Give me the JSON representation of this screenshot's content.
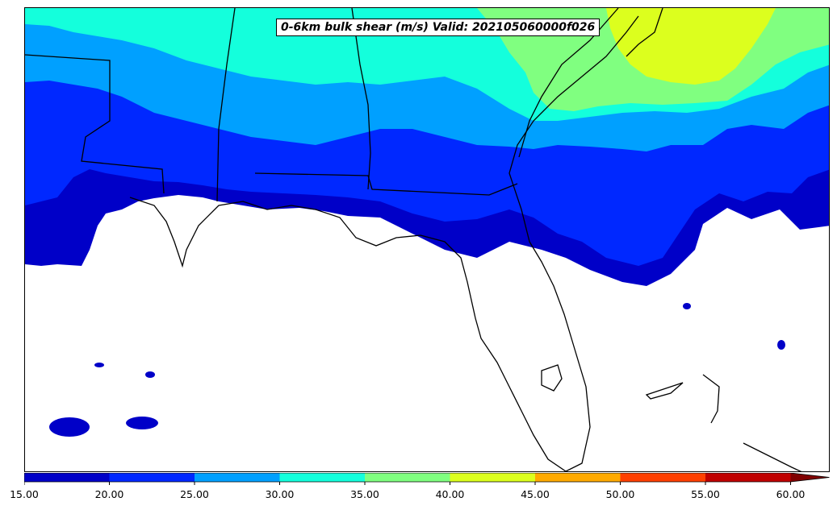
{
  "title": "0-6km bulk shear (m/s) Valid: 202105060000f026",
  "colorbar": {
    "ticks": [
      "15.00",
      "20.00",
      "25.00",
      "30.00",
      "35.00",
      "40.00",
      "45.00",
      "50.00",
      "55.00",
      "60.00"
    ],
    "colors": [
      "#0000c8",
      "#0028ff",
      "#00a0ff",
      "#14ffdc",
      "#80ff80",
      "#dcff1e",
      "#ffaa00",
      "#ff4000",
      "#c00000"
    ],
    "extend_color": "#800000",
    "extend": "max"
  },
  "bands": [
    {
      "name": "15-20",
      "color": "#0000c8"
    },
    {
      "name": "20-25",
      "color": "#0028ff"
    },
    {
      "name": "25-30",
      "color": "#00a0ff"
    },
    {
      "name": "30-35",
      "color": "#14ffdc"
    },
    {
      "name": "35-40",
      "color": "#80ff80"
    },
    {
      "name": "40-45",
      "color": "#dcff1e"
    }
  ],
  "region": "Southeastern United States"
}
